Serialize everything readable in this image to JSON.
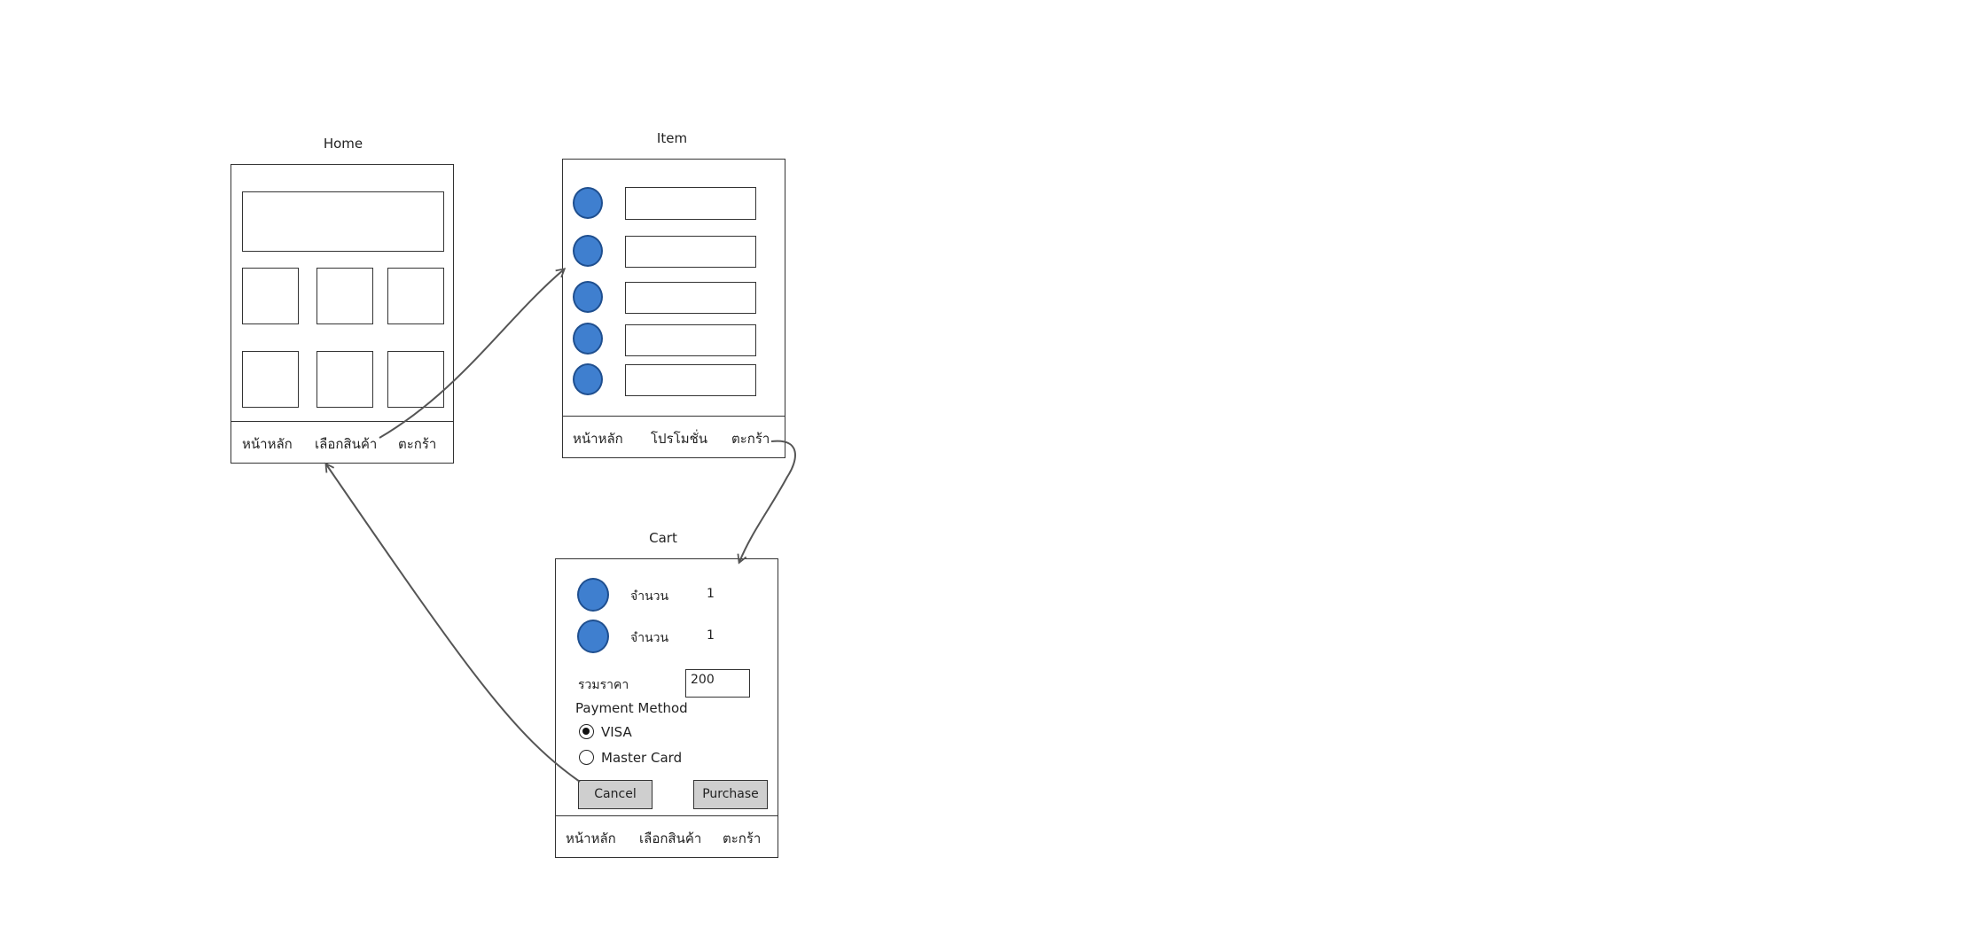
{
  "colors": {
    "item_dot": "#3f7fcf",
    "connector": "#555555",
    "button_bg": "#cfcfcf"
  },
  "home": {
    "title": "Home",
    "nav": [
      "หน้าหลัก",
      "เลือกสินค้า",
      "ตะกร้า"
    ]
  },
  "item": {
    "title": "Item",
    "nav": [
      "หน้าหลัก",
      "โปรโมชั่น",
      "ตะกร้า"
    ]
  },
  "cart": {
    "title": "Cart",
    "rows": [
      {
        "label": "จำนวน",
        "qty": "1"
      },
      {
        "label": "จำนวน",
        "qty": "1"
      }
    ],
    "total_label": "รวมราคา",
    "total_value": "200",
    "payment_label": "Payment Method",
    "payment_options": [
      {
        "label": "VISA",
        "selected": true
      },
      {
        "label": "Master Card",
        "selected": false
      }
    ],
    "cancel_label": "Cancel",
    "purchase_label": "Purchase",
    "nav": [
      "หน้าหลัก",
      "เลือกสินค้า",
      "ตะกร้า"
    ]
  }
}
